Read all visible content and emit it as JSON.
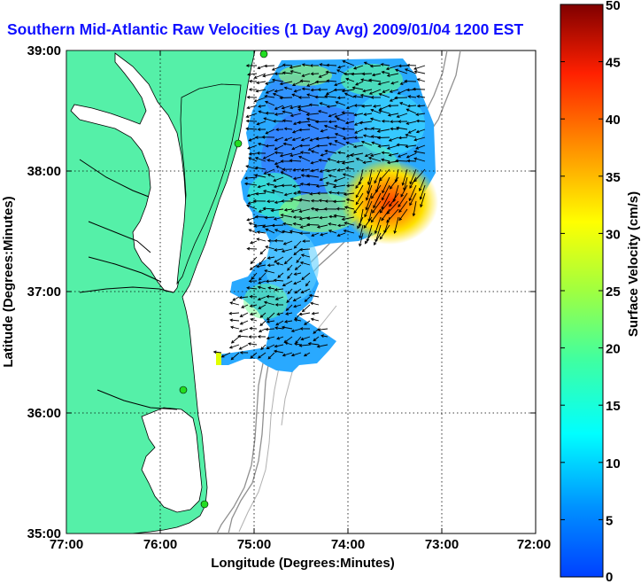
{
  "title": "Southern Mid-Atlantic Raw Velocities (1 Day Avg) 2009/01/04 1200 EST",
  "map": {
    "x_ticks": [
      "77:00",
      "76:00",
      "75:00",
      "74:00",
      "73:00",
      "72:00"
    ],
    "y_ticks": [
      "39:00",
      "38:00",
      "37:00",
      "36:00",
      "35:00"
    ],
    "x_label": "Longitude (Degrees:Minutes)",
    "y_label": "Latitude (Degrees:Minutes)",
    "lon_range": [
      -77,
      -72
    ],
    "lat_range": [
      35,
      39
    ],
    "land_color": "#55f0a8",
    "grid": "dotted",
    "station_color": "#22dd22"
  },
  "colorbar": {
    "label": "Surface Velocity (cm/s)",
    "ticks": [
      "50",
      "45",
      "40",
      "35",
      "30",
      "25",
      "20",
      "15",
      "10",
      "5",
      "0"
    ],
    "range": [
      0,
      50
    ],
    "colormap": "jet"
  }
}
